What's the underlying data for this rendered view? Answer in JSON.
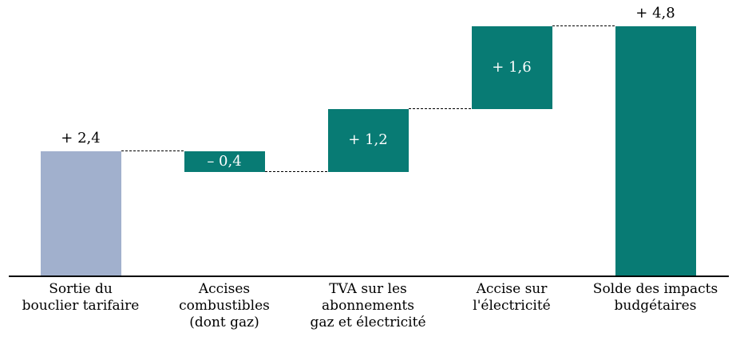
{
  "page": {
    "background_color": "#ffffff"
  },
  "chart_data": {
    "type": "bar",
    "variant": "waterfall",
    "title": "",
    "xlabel": "",
    "ylabel": "",
    "grid": false,
    "legend_position": "none",
    "ylim": [
      0,
      5.2
    ],
    "baseline_value": 0,
    "decimal_style": "french-comma",
    "categories": [
      "Sortie du bouclier tarifaire",
      "Accises combustibles (dont gaz)",
      "TVA sur les abonnements gaz et électricité",
      "Accise sur l'électricité",
      "Solde des impacts budgétaires"
    ],
    "values": [
      2.4,
      -0.4,
      1.2,
      1.6,
      4.8
    ],
    "colors": {
      "start_bar": "#A1B0CD",
      "delta_bar": "#087B74",
      "axis": "#000000",
      "connector": "#000000",
      "label_dark": "#000000",
      "label_light": "#FFFFFF"
    },
    "connector_style": "dashed",
    "bars": [
      {
        "name": "sortie-du-bouclier-tarifaire",
        "kind": "start",
        "value": 2.4,
        "value_label": "+ 2,4",
        "value_label_position": "above",
        "value_label_color": "#000000",
        "color": "#A1B0CD",
        "category_label": "Sortie du\nbouclier tarifaire"
      },
      {
        "name": "accises-combustibles-dont-gaz",
        "kind": "delta",
        "value": -0.4,
        "value_label": "– 0,4",
        "value_label_position": "inside",
        "value_label_color": "#FFFFFF",
        "color": "#087B74",
        "category_label": "Accises\ncombustibles\n(dont gaz)"
      },
      {
        "name": "tva-abonnements-gaz-electricite",
        "kind": "delta",
        "value": 1.2,
        "value_label": "+ 1,2",
        "value_label_position": "inside",
        "value_label_color": "#FFFFFF",
        "color": "#087B74",
        "category_label": "TVA sur les\nabonnements\ngaz et électricité"
      },
      {
        "name": "accise-electricite",
        "kind": "delta",
        "value": 1.6,
        "value_label": "+ 1,6",
        "value_label_position": "inside",
        "value_label_color": "#FFFFFF",
        "color": "#087B74",
        "category_label": "Accise sur\nl'électricité"
      },
      {
        "name": "solde-impacts-budgetaires",
        "kind": "total",
        "value": 4.8,
        "value_label": "+ 4,8",
        "value_label_position": "above",
        "value_label_color": "#000000",
        "color": "#087B74",
        "category_label": "Solde des impacts\nbudgétaires"
      }
    ]
  }
}
